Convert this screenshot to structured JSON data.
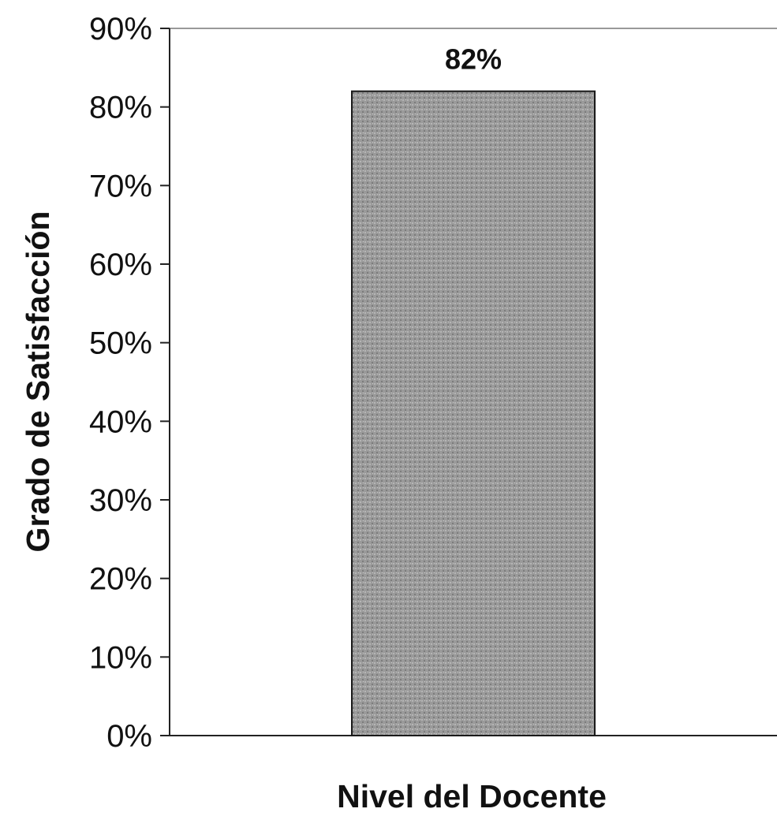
{
  "chart_data": {
    "type": "bar",
    "title": "",
    "xlabel": "Nivel del Docente",
    "ylabel": "Grado de Satisfacción",
    "categories": [
      ""
    ],
    "series": [
      {
        "values": [
          0.82
        ],
        "data_labels": [
          "82%"
        ]
      }
    ],
    "ylim": [
      0,
      0.9
    ],
    "y_ticks": [
      0,
      0.1,
      0.2,
      0.3,
      0.4,
      0.5,
      0.6,
      0.7,
      0.8,
      0.9
    ],
    "y_tick_labels": [
      "0%",
      "10%",
      "20%",
      "30%",
      "40%",
      "50%",
      "60%",
      "70%",
      "80%",
      "90%"
    ],
    "grid": false,
    "legend": "none",
    "colors": {
      "bar_fill": "#9a9a9a",
      "bar_stroke": "#1a1a1a",
      "axis": "#222222"
    }
  }
}
